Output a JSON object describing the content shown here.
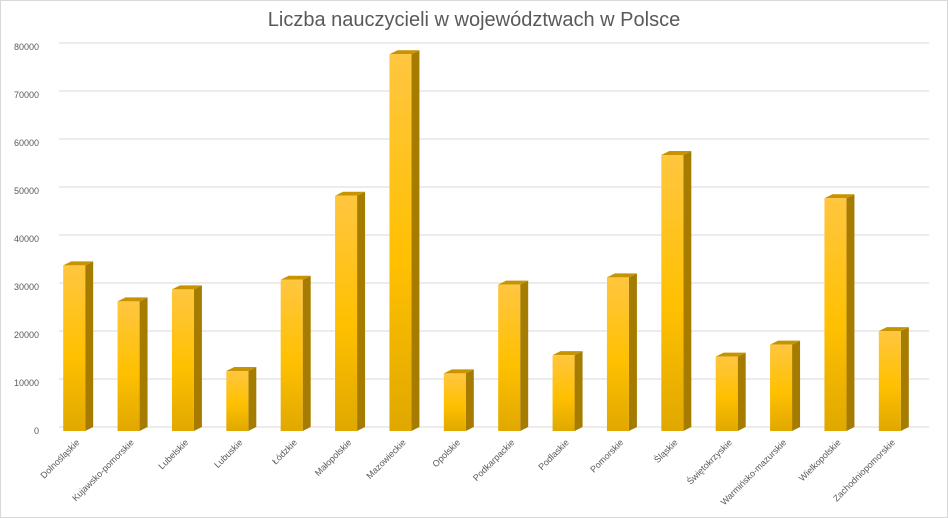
{
  "chart_data": {
    "type": "bar",
    "title": "Liczba nauczycieli w województwach w Polsce",
    "xlabel": "",
    "ylabel": "",
    "ylim": [
      0,
      80000
    ],
    "yticks": [
      0,
      10000,
      20000,
      30000,
      40000,
      50000,
      60000,
      70000,
      80000
    ],
    "grid": true,
    "legend": "none",
    "color": "#FFC000",
    "categories": [
      "Dolnośląskie",
      "Kujawsko-pomorskie",
      "Lubelskie",
      "Lubuskie",
      "Łódzkie",
      "Małopolskie",
      "Mazowieckie",
      "Opolskie",
      "Podkarpackie",
      "Podlaskie",
      "Pomorskie",
      "Śląskie",
      "Świętokrzyskie",
      "Warmińsko-mazurskie",
      "Wielkopolskie",
      "Zachodniopomorskie"
    ],
    "values": [
      34500,
      27000,
      29500,
      12500,
      31500,
      49000,
      78500,
      12000,
      30500,
      15800,
      32000,
      57500,
      15500,
      18000,
      48500,
      20800
    ]
  }
}
